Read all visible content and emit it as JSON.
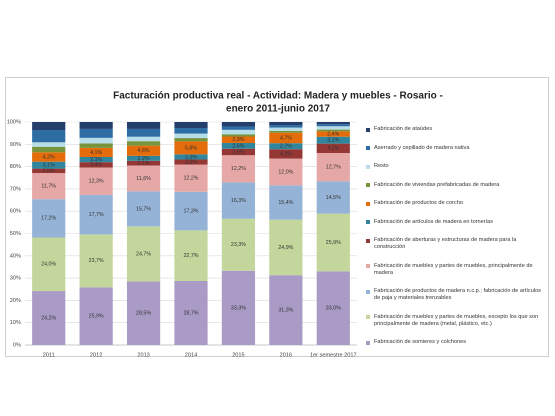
{
  "chart_data": {
    "type": "stacked_bar",
    "title": "Facturación productiva real - Actividad: Madera y muebles - Rosario -",
    "subtitle": "enero 2011-junio 2017",
    "categories": [
      "2011",
      "2012",
      "2013",
      "2014",
      "2015",
      "2016",
      "1er semestre 2017"
    ],
    "ylim": [
      0,
      100
    ],
    "yticks": [
      {
        "value": 0,
        "label": "0%"
      },
      {
        "value": 10,
        "label": "10%"
      },
      {
        "value": 20,
        "label": "20%"
      },
      {
        "value": 30,
        "label": "30%"
      },
      {
        "value": 40,
        "label": "40%"
      },
      {
        "value": 50,
        "label": "50%"
      },
      {
        "value": 60,
        "label": "60%"
      },
      {
        "value": 70,
        "label": "70%"
      },
      {
        "value": 80,
        "label": "80%"
      },
      {
        "value": 90,
        "label": "90%"
      },
      {
        "value": 100,
        "label": "100%"
      }
    ],
    "grid": true,
    "legend": "right",
    "series": [
      {
        "name": "Fabricación de somieres y colchones",
        "color": "#a99bc6",
        "values": [
          24.2,
          25.9,
          28.5,
          28.7,
          33.3,
          31.3,
          33.0
        ],
        "value_labels": [
          "24,2%",
          "25,9%",
          "28,5%",
          "28,7%",
          "33,3%",
          "31,3%",
          "33,0%"
        ]
      },
      {
        "name": "Fabricación de muebles y partes de muebles, excepto los que son principalmente de madera (metal, plástico, etc.)",
        "color": "#c3d69b",
        "values": [
          24.0,
          23.7,
          24.7,
          22.7,
          23.3,
          24.9,
          25.9
        ],
        "value_labels": [
          "24,0%",
          "23,7%",
          "24,7%",
          "22,7%",
          "23,3%",
          "24,9%",
          "25,9%"
        ]
      },
      {
        "name": "Fabricación de productos de madera n.c.p.; fabricación de artículos de paja y materiales trenzables",
        "color": "#95b3d7",
        "values": [
          17.2,
          17.7,
          15.7,
          17.3,
          16.3,
          15.4,
          14.5
        ],
        "value_labels": [
          "17,2%",
          "17,7%",
          "15,7%",
          "17,3%",
          "16,3%",
          "15,4%",
          "14,5%"
        ]
      },
      {
        "name": "Fabricación de muebles y partes de muebles, principalmente de madera",
        "color": "#e6a8a6",
        "values": [
          11.7,
          12.3,
          11.6,
          12.2,
          12.2,
          12.0,
          12.7
        ],
        "value_labels": [
          "11,7%",
          "12,3%",
          "11,6%",
          "12,2%",
          "12,2%",
          "12,0%",
          "12,7%"
        ]
      },
      {
        "name": "Fabricación de aberturas y estructuras de madera para la construcción",
        "color": "#953735",
        "values": [
          2.0,
          2.4,
          2.1,
          2.3,
          2.9,
          4.2,
          4.2
        ],
        "value_labels": [
          "2,0%",
          "2,4%",
          "2,1%",
          "2,3%",
          "2,9%",
          "4,2%",
          "4,2%"
        ]
      },
      {
        "name": "Fabricación de artículos de madera en tornerías",
        "color": "#31859c",
        "values": [
          3.1,
          2.3,
          2.2,
          2.3,
          2.6,
          2.7,
          3.1
        ],
        "value_labels": [
          "3,1%",
          "2,3%",
          "2,2%",
          "2,3%",
          "2,6%",
          "2,7%",
          "3,1%"
        ]
      },
      {
        "name": "Fabricación de productos de corcho",
        "color": "#e46c0a",
        "values": [
          4.2,
          4.1,
          4.6,
          5.8,
          2.9,
          4.7,
          2.4
        ],
        "value_labels": [
          "4,2%",
          "4,1%",
          "4,6%",
          "5,8%",
          "2,9%",
          "4,7%",
          "2,4%"
        ]
      },
      {
        "name": "Fabricación de viviendas prefabricadas de madera",
        "color": "#77933c",
        "values": [
          2.5,
          2.0,
          2.0,
          1.5,
          1.0,
          0.8,
          0.8
        ]
      },
      {
        "name": "Resto",
        "color": "#b7dee8",
        "values": [
          2.0,
          2.5,
          2.0,
          2.0,
          2.0,
          1.5,
          1.5
        ]
      },
      {
        "name": "Aserrado y cepillado de madera nativa",
        "color": "#2e6da4",
        "values": [
          5.5,
          4.0,
          3.5,
          2.5,
          1.5,
          1.0,
          0.9
        ]
      },
      {
        "name": "Fabricación de ataúdes",
        "color": "#243f6b",
        "values": [
          3.6,
          3.1,
          3.1,
          2.7,
          2.0,
          1.5,
          1.0
        ]
      }
    ]
  }
}
